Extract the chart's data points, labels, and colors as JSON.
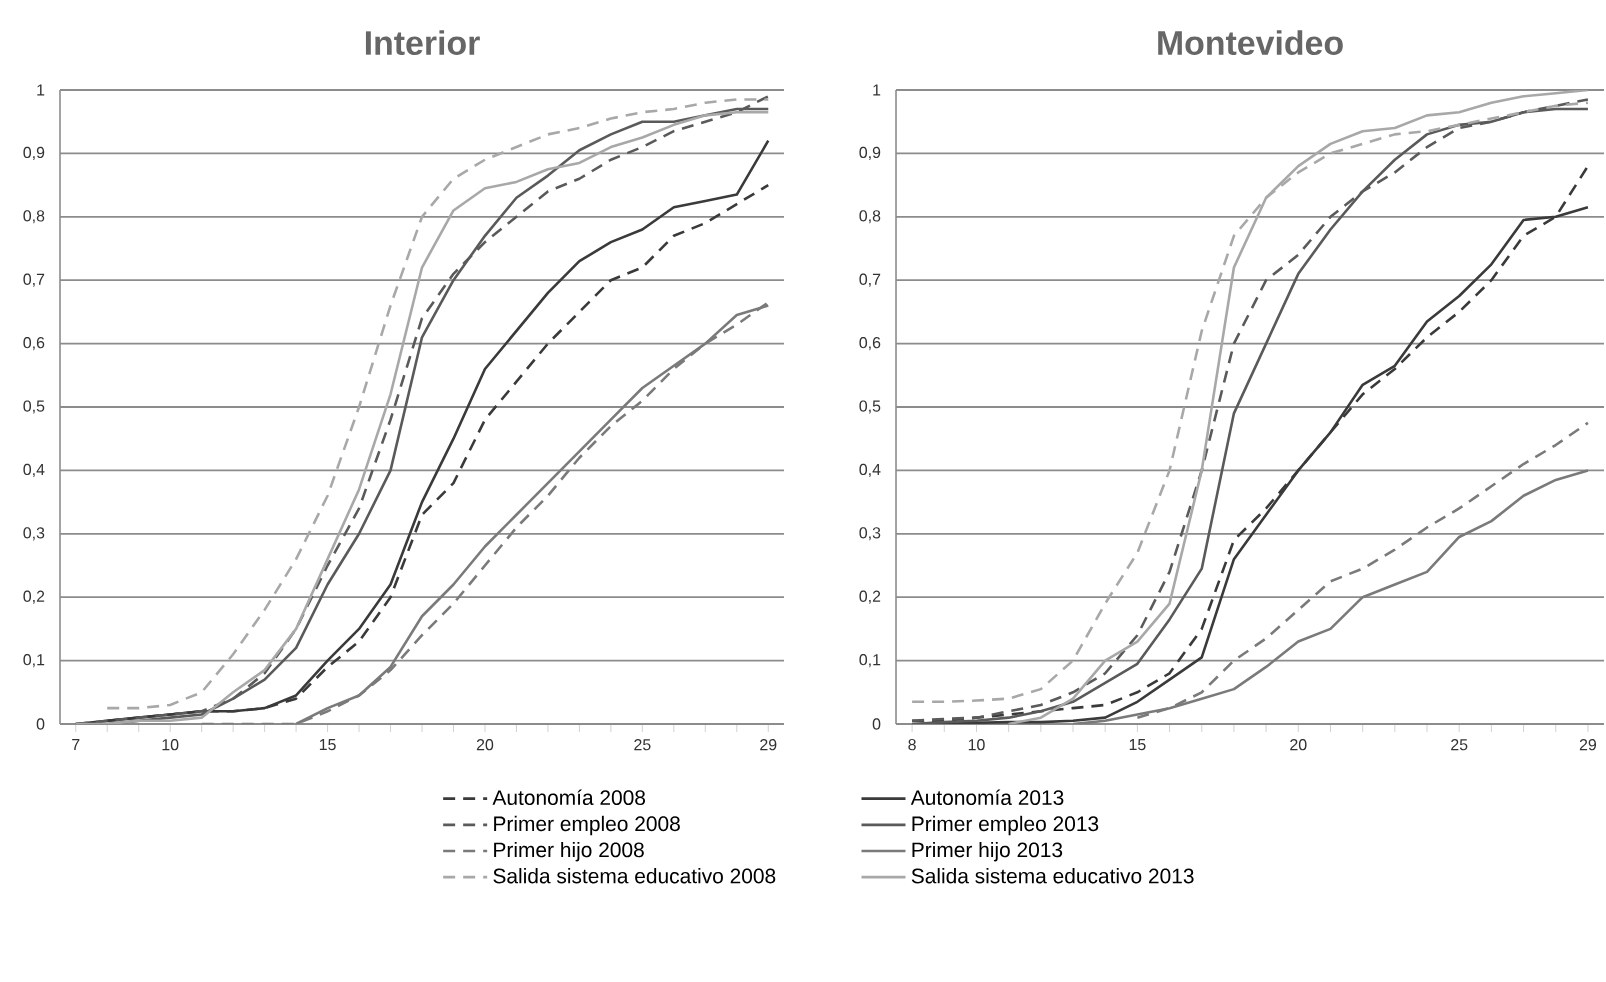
{
  "chart_data": [
    {
      "type": "line",
      "title": "Interior",
      "legend": "bottom",
      "grid": "y",
      "xlim": [
        6.5,
        29.5
      ],
      "xticks": [
        7,
        {
          "value": 8,
          "label": null
        },
        {
          "value": 9,
          "label": null
        },
        10,
        {
          "value": 11,
          "label": null
        },
        {
          "value": 12,
          "label": null
        },
        {
          "value": 13,
          "label": null
        },
        {
          "value": 14,
          "label": null
        },
        15,
        {
          "value": 16,
          "label": null
        },
        {
          "value": 17,
          "label": null
        },
        {
          "value": 18,
          "label": null
        },
        {
          "value": 19,
          "label": null
        },
        20,
        {
          "value": 21,
          "label": null
        },
        {
          "value": 22,
          "label": null
        },
        {
          "value": 23,
          "label": null
        },
        {
          "value": 24,
          "label": null
        },
        25,
        {
          "value": 26,
          "label": null
        },
        {
          "value": 27,
          "label": null
        },
        {
          "value": 28,
          "label": null
        },
        29
      ],
      "ylim": [
        0,
        1
      ],
      "yticks": [
        0,
        {
          "value": 0.1,
          "label": "0,1"
        },
        {
          "value": 0.2,
          "label": "0,2"
        },
        {
          "value": 0.3,
          "label": "0,3"
        },
        {
          "value": 0.4,
          "label": "0,4"
        },
        {
          "value": 0.5,
          "label": "0,5"
        },
        {
          "value": 0.6,
          "label": "0,6"
        },
        {
          "value": 0.7,
          "label": "0,7"
        },
        {
          "value": 0.8,
          "label": "0,8"
        },
        {
          "value": 0.9,
          "label": "0,9"
        },
        1
      ],
      "x": [
        7,
        8,
        9,
        10,
        11,
        12,
        13,
        14,
        15,
        16,
        17,
        18,
        19,
        20,
        21,
        22,
        23,
        24,
        25,
        26,
        27,
        28,
        29
      ],
      "series": [
        {
          "name": "Autonomía 2008",
          "color": "#3a3a3a",
          "line_style": "dashed",
          "values": [
            null,
            0.005,
            0.01,
            0.015,
            0.02,
            0.02,
            0.025,
            0.04,
            0.09,
            0.13,
            0.2,
            0.33,
            0.38,
            0.48,
            0.54,
            0.6,
            0.65,
            0.7,
            0.72,
            0.77,
            0.79,
            0.82,
            0.85
          ]
        },
        {
          "name": "Autonomía 2013",
          "color": "#3a3a3a",
          "line_style": "solid",
          "values": [
            0,
            0.005,
            0.01,
            0.015,
            0.02,
            0.02,
            0.025,
            0.045,
            0.1,
            0.15,
            0.22,
            0.35,
            0.45,
            0.56,
            0.62,
            0.68,
            0.73,
            0.76,
            0.78,
            0.815,
            0.825,
            0.835,
            0.92
          ]
        },
        {
          "name": "Primer empleo 2008",
          "color": "#5a5a5a",
          "line_style": "dashed",
          "values": [
            0,
            0.005,
            0.01,
            0.015,
            0.02,
            0.04,
            0.08,
            0.15,
            0.25,
            0.34,
            0.48,
            0.64,
            0.71,
            0.76,
            0.8,
            0.84,
            0.86,
            0.89,
            0.91,
            0.935,
            0.95,
            0.965,
            0.99
          ]
        },
        {
          "name": "Primer empleo 2013",
          "color": "#5a5a5a",
          "line_style": "solid",
          "values": [
            0,
            0,
            0.005,
            0.01,
            0.015,
            0.04,
            0.07,
            0.12,
            0.22,
            0.3,
            0.4,
            0.61,
            0.7,
            0.77,
            0.83,
            0.865,
            0.905,
            0.93,
            0.95,
            0.95,
            0.96,
            0.97,
            0.97
          ]
        },
        {
          "name": "Primer hijo 2008",
          "color": "#7a7a7a",
          "line_style": "dashed",
          "values": [
            null,
            null,
            null,
            null,
            0,
            0,
            0,
            0,
            0.02,
            0.045,
            0.085,
            0.14,
            0.19,
            0.25,
            0.31,
            0.36,
            0.42,
            0.47,
            0.51,
            0.56,
            0.6,
            0.63,
            0.665
          ]
        },
        {
          "name": "Primer hijo 2013",
          "color": "#7a7a7a",
          "line_style": "solid",
          "values": [
            null,
            null,
            null,
            null,
            null,
            null,
            null,
            0,
            0.025,
            0.045,
            0.09,
            0.17,
            0.22,
            0.28,
            0.33,
            0.38,
            0.43,
            0.48,
            0.53,
            0.565,
            0.6,
            0.645,
            0.66
          ]
        },
        {
          "name": "Salida sistema  educativo 2008",
          "color": "#a8a8a8",
          "line_style": "dashed",
          "values": [
            null,
            0.025,
            0.025,
            0.03,
            0.05,
            0.11,
            0.18,
            0.26,
            0.36,
            0.5,
            0.66,
            0.8,
            0.86,
            0.89,
            0.91,
            0.93,
            0.94,
            0.955,
            0.965,
            0.97,
            0.98,
            0.985,
            0.985
          ]
        },
        {
          "name": "Salida sistema  educativo 2013",
          "color": "#a8a8a8",
          "line_style": "solid",
          "values": [
            0,
            0,
            0.005,
            0.005,
            0.01,
            0.05,
            0.085,
            0.15,
            0.26,
            0.37,
            0.52,
            0.72,
            0.81,
            0.845,
            0.855,
            0.875,
            0.885,
            0.91,
            0.925,
            0.945,
            0.96,
            0.965,
            0.965
          ]
        }
      ]
    },
    {
      "type": "line",
      "title": "Montevideo",
      "grid": "y",
      "xlim": [
        7.5,
        29.5
      ],
      "xticks": [
        8,
        {
          "value": 9,
          "label": null
        },
        10,
        {
          "value": 11,
          "label": null
        },
        {
          "value": 12,
          "label": null
        },
        {
          "value": 13,
          "label": null
        },
        {
          "value": 14,
          "label": null
        },
        15,
        {
          "value": 16,
          "label": null
        },
        {
          "value": 17,
          "label": null
        },
        {
          "value": 18,
          "label": null
        },
        {
          "value": 19,
          "label": null
        },
        20,
        {
          "value": 21,
          "label": null
        },
        {
          "value": 22,
          "label": null
        },
        {
          "value": 23,
          "label": null
        },
        {
          "value": 24,
          "label": null
        },
        25,
        {
          "value": 26,
          "label": null
        },
        {
          "value": 27,
          "label": null
        },
        {
          "value": 28,
          "label": null
        },
        29
      ],
      "ylim": [
        0,
        1
      ],
      "yticks": [
        0,
        {
          "value": 0.1,
          "label": "0,1"
        },
        {
          "value": 0.2,
          "label": "0,2"
        },
        {
          "value": 0.3,
          "label": "0,3"
        },
        {
          "value": 0.4,
          "label": "0,4"
        },
        {
          "value": 0.5,
          "label": "0,5"
        },
        {
          "value": 0.6,
          "label": "0,6"
        },
        {
          "value": 0.7,
          "label": "0,7"
        },
        {
          "value": 0.8,
          "label": "0,8"
        },
        {
          "value": 0.9,
          "label": "0,9"
        },
        1
      ],
      "x": [
        8,
        9,
        10,
        11,
        12,
        13,
        14,
        15,
        16,
        17,
        18,
        19,
        20,
        21,
        22,
        23,
        24,
        25,
        26,
        27,
        28,
        29
      ],
      "series": [
        {
          "color": "#3a3a3a",
          "line_style": "dashed",
          "values": [
            0.005,
            0.005,
            0.01,
            0.015,
            0.02,
            0.025,
            0.03,
            0.05,
            0.08,
            0.15,
            0.29,
            0.34,
            0.4,
            0.46,
            0.52,
            0.56,
            0.61,
            0.65,
            0.7,
            0.77,
            0.8,
            0.88
          ]
        },
        {
          "color": "#3a3a3a",
          "line_style": "solid",
          "values": [
            0,
            0,
            0.002,
            0.003,
            0.003,
            0.005,
            0.01,
            0.035,
            0.07,
            0.105,
            0.26,
            0.33,
            0.4,
            0.46,
            0.535,
            0.565,
            0.635,
            0.675,
            0.725,
            0.795,
            0.8,
            0.815
          ]
        },
        {
          "color": "#5a5a5a",
          "line_style": "dashed",
          "values": [
            0.005,
            0.008,
            0.01,
            0.02,
            0.03,
            0.05,
            0.08,
            0.14,
            0.24,
            0.4,
            0.6,
            0.7,
            0.74,
            0.8,
            0.84,
            0.87,
            0.91,
            0.94,
            0.95,
            0.965,
            0.975,
            0.985
          ]
        },
        {
          "color": "#5a5a5a",
          "line_style": "solid",
          "values": [
            0,
            0.003,
            0.005,
            0.01,
            0.02,
            0.035,
            0.065,
            0.095,
            0.165,
            0.245,
            0.49,
            0.6,
            0.71,
            0.78,
            0.84,
            0.89,
            0.93,
            0.945,
            0.95,
            0.965,
            0.97,
            0.97
          ]
        },
        {
          "color": "#7a7a7a",
          "line_style": "dashed",
          "values": [
            null,
            null,
            null,
            null,
            null,
            null,
            null,
            0.01,
            0.025,
            0.05,
            0.1,
            0.135,
            0.18,
            0.225,
            0.245,
            0.275,
            0.31,
            0.34,
            0.375,
            0.41,
            0.44,
            0.475
          ]
        },
        {
          "color": "#7a7a7a",
          "line_style": "solid",
          "values": [
            null,
            null,
            null,
            null,
            null,
            0,
            0.005,
            0.015,
            0.025,
            0.04,
            0.055,
            0.09,
            0.13,
            0.15,
            0.2,
            0.22,
            0.24,
            0.295,
            0.32,
            0.36,
            0.385,
            0.4
          ]
        },
        {
          "color": "#a8a8a8",
          "line_style": "dashed",
          "values": [
            0.035,
            0.035,
            0.037,
            0.04,
            0.055,
            0.1,
            0.19,
            0.27,
            0.4,
            0.62,
            0.77,
            0.83,
            0.87,
            0.9,
            0.915,
            0.93,
            0.935,
            0.945,
            0.955,
            0.965,
            0.975,
            0.98
          ]
        },
        {
          "color": "#a8a8a8",
          "line_style": "solid",
          "values": [
            null,
            null,
            null,
            0,
            0.01,
            0.04,
            0.1,
            0.13,
            0.19,
            0.4,
            0.72,
            0.83,
            0.88,
            0.915,
            0.935,
            0.94,
            0.96,
            0.965,
            0.98,
            0.99,
            0.995,
            1.0
          ]
        }
      ]
    }
  ]
}
